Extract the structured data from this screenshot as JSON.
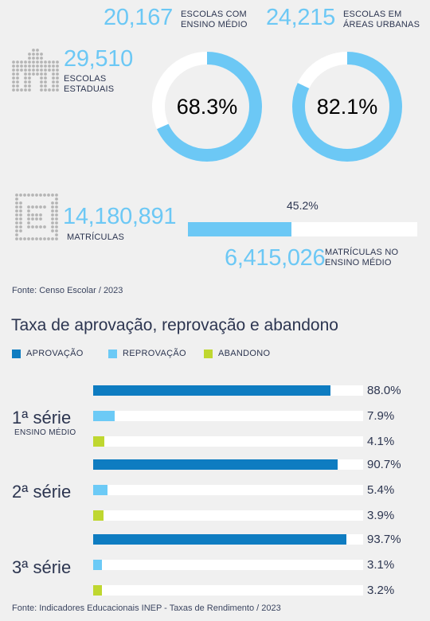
{
  "colors": {
    "aprovacao": "#0e7cc1",
    "reprovacao": "#6ccaf6",
    "abandono": "#bfd730",
    "light_blue": "#6cc8f5",
    "track": "#ffffff",
    "text": "#2c3550",
    "icon_grey": "#b5b5b5"
  },
  "stats": {
    "escolas_medio": {
      "value": "20,167",
      "label1": "ESCOLAS COM",
      "label2": "ENSINO MÉDIO"
    },
    "escolas_urbanas": {
      "value": "24,215",
      "label1": "ESCOLAS EM",
      "label2": "ÁREAS URBANAS"
    },
    "escolas_estaduais": {
      "value": "29,510",
      "label1": "ESCOLAS",
      "label2": "ESTADUAIS",
      "icon": "school-building-icon"
    },
    "donut_estaduais": {
      "label": "68.3%",
      "fraction": 0.683
    },
    "donut_urbanas": {
      "label": "82.1%",
      "fraction": 0.821
    },
    "matriculas": {
      "value": "14,180,891",
      "label": "MATRÍCULAS",
      "icon": "enrollment-grid-icon"
    },
    "matriculas_medio_bar": {
      "label": "45.2%",
      "fraction": 0.452
    },
    "matriculas_medio": {
      "value": "6,415,026",
      "label1": "MATRÍCULAS NO",
      "label2": "ENSINO MÉDIO"
    }
  },
  "source1": "Fonte: Censo Escolar / 2023",
  "section_title": "Taxa de aprovação, reprovação e abandono",
  "legend": [
    {
      "label": "APROVAÇÃO",
      "color": "#0e7cc1"
    },
    {
      "label": "REPROVAÇÃO",
      "color": "#6ccaf6"
    },
    {
      "label": "ABANDONO",
      "color": "#bfd730"
    }
  ],
  "chart_data": {
    "type": "bar",
    "orientation": "horizontal",
    "categories": [
      "1ª série",
      "2ª série",
      "3ª série"
    ],
    "category_sublabels": [
      "ENSINO MÉDIO",
      "",
      ""
    ],
    "series": [
      {
        "name": "APROVAÇÃO",
        "values": [
          88.0,
          90.7,
          93.7
        ],
        "labels": [
          "88.0%",
          "90.7%",
          "93.7%"
        ]
      },
      {
        "name": "REPROVAÇÃO",
        "values": [
          7.9,
          5.4,
          3.1
        ],
        "labels": [
          "7.9%",
          "5.4%",
          "3.1%"
        ]
      },
      {
        "name": "ABANDONO",
        "values": [
          4.1,
          3.9,
          3.2
        ],
        "labels": [
          "4.1%",
          "3.9%",
          "3.2%"
        ]
      }
    ],
    "xlim": [
      0,
      100
    ],
    "title": "Taxa de aprovação, reprovação e abandono",
    "legend_position": "top-left"
  },
  "source2": "Fonte: Indicadores Educacionais INEP - Taxas de Rendimento / 2023"
}
